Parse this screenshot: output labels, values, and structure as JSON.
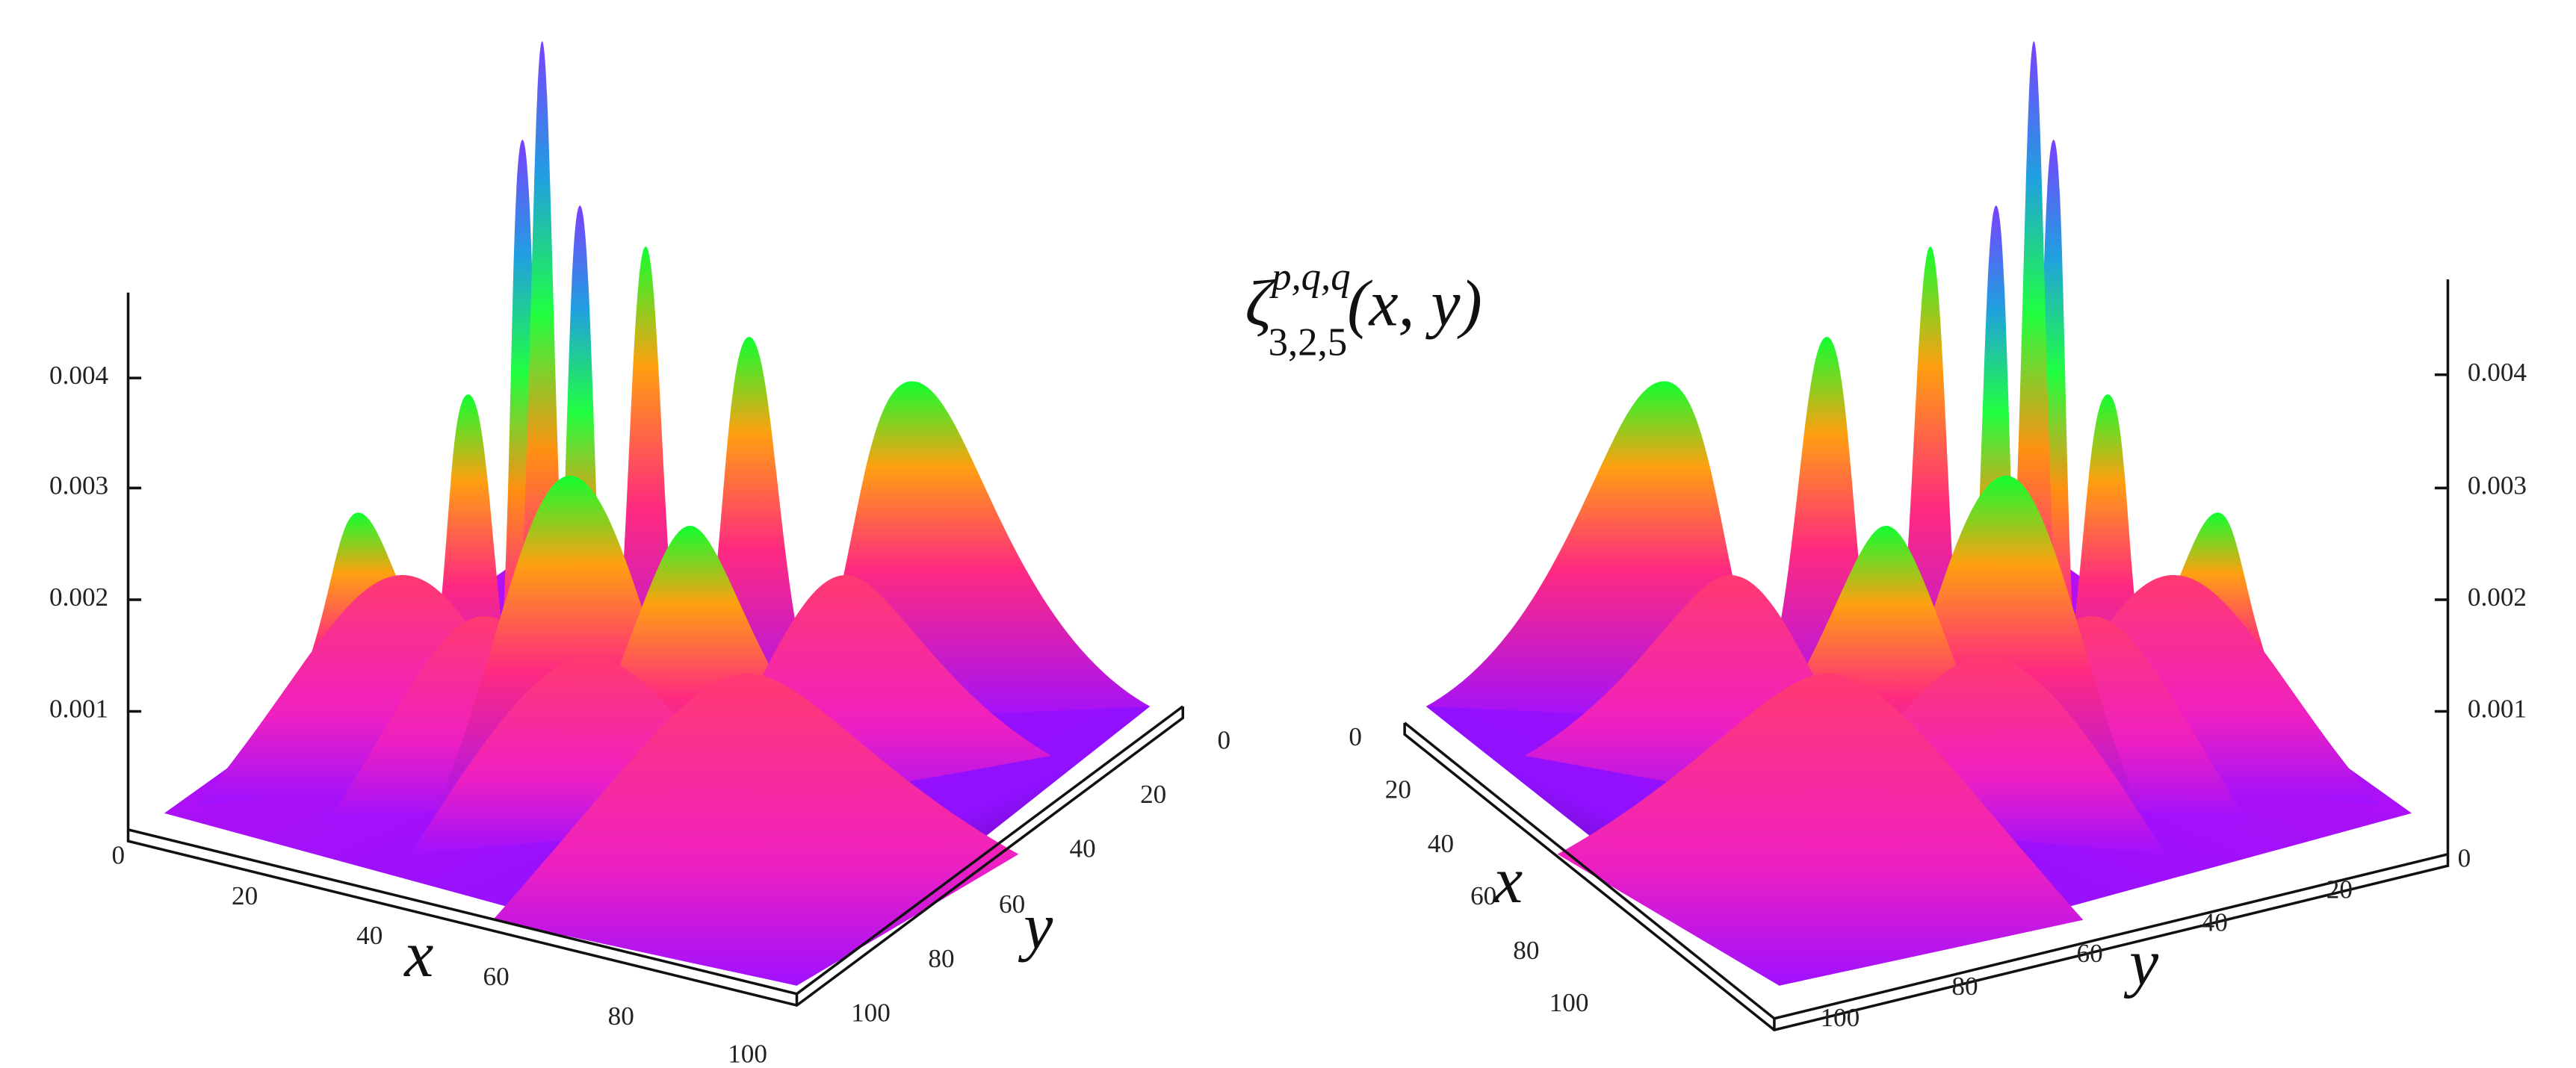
{
  "title": {
    "base": "ζ",
    "superscript": "p,q,q",
    "subscript": "3,2,5",
    "argument": "(x, y)"
  },
  "panels": [
    {
      "z_ticks": [
        "0.004",
        "0.003",
        "0.002",
        "0.001"
      ],
      "x_ticks": [
        "0",
        "20",
        "40",
        "60",
        "80",
        "100"
      ],
      "y_ticks": [
        "0",
        "20",
        "40",
        "60",
        "80",
        "100"
      ],
      "x_label": "x",
      "y_label": "y"
    },
    {
      "z_ticks": [
        "0.004",
        "0.003",
        "0.002",
        "0.001"
      ],
      "x_ticks": [
        "0",
        "20",
        "40",
        "60",
        "80",
        "100"
      ],
      "y_ticks": [
        "0",
        "20",
        "40",
        "60",
        "80",
        "100"
      ],
      "x_label": "x",
      "y_label": "y"
    }
  ]
}
